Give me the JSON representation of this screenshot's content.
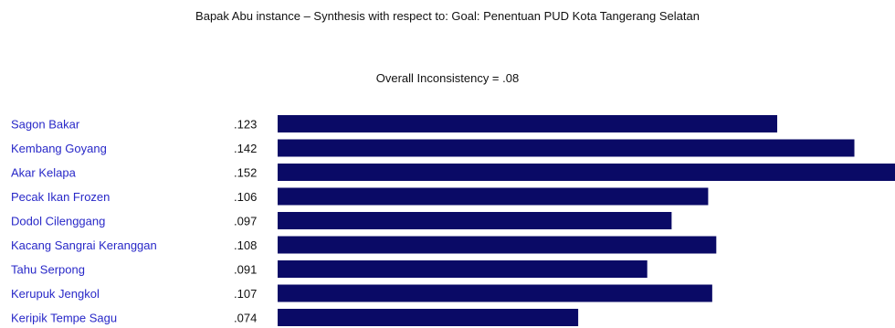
{
  "chart_data": {
    "type": "bar",
    "orientation": "horizontal",
    "title": "Bapak Abu instance – Synthesis with respect to: Goal: Penentuan PUD Kota Tangerang Selatan",
    "subtitle": "Overall Inconsistency = .08",
    "categories": [
      "Sagon Bakar",
      "Kembang Goyang",
      "Akar Kelapa",
      "Pecak Ikan Frozen",
      "Dodol Cilenggang",
      "Kacang Sangrai Keranggan",
      "Tahu Serpong",
      "Kerupuk Jengkol",
      "Keripik Tempe Sagu"
    ],
    "values": [
      0.123,
      0.142,
      0.152,
      0.106,
      0.097,
      0.108,
      0.091,
      0.107,
      0.074
    ],
    "value_labels": [
      ".123",
      ".142",
      ".152",
      ".106",
      ".097",
      ".108",
      ".091",
      ".107",
      ".074"
    ],
    "xlim": [
      0,
      0.152
    ],
    "grid": false,
    "colors": {
      "bar": "#0a0a66",
      "category_label": "#2828c8",
      "value_label": "#111111"
    }
  }
}
